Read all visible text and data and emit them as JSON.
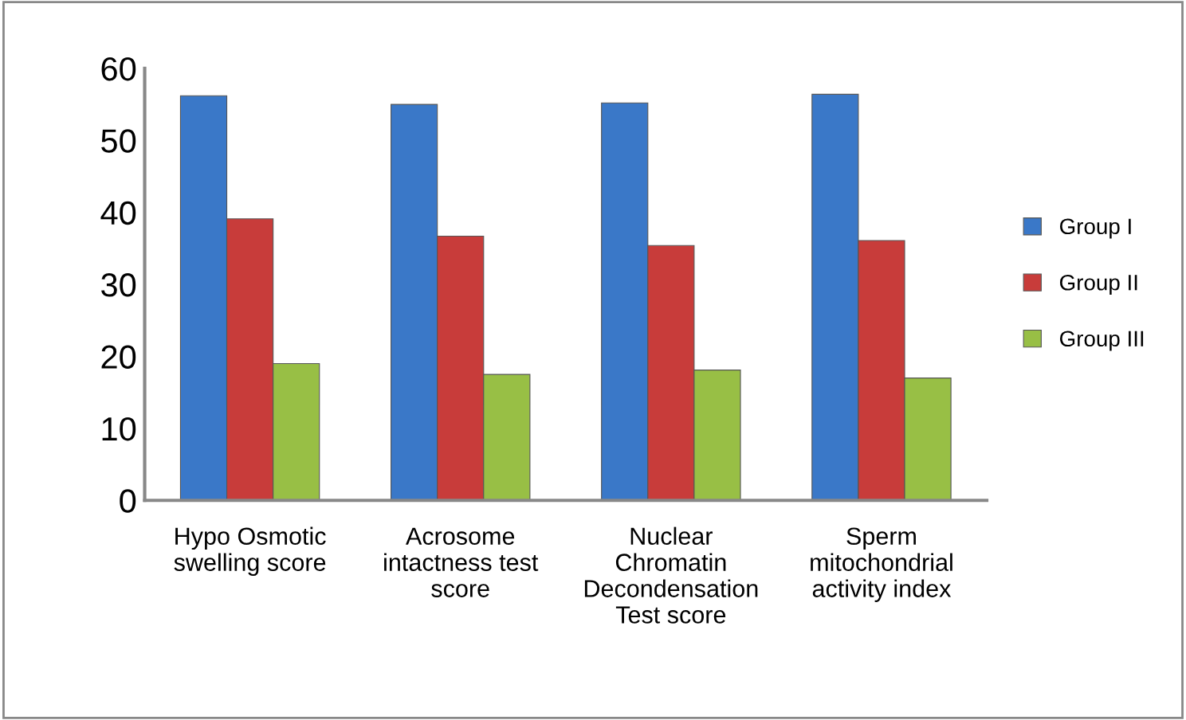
{
  "chart_data": {
    "type": "bar",
    "categories": [
      "Hypo Osmotic\nswelling score",
      "Acrosome\nintactness test\nscore",
      "Nuclear\nChromatin\nDecondensation\nTest score",
      "Sperm\nmitochondrial\nactivity index"
    ],
    "series": [
      {
        "name": "Group I",
        "color": "#3a78c8",
        "values": [
          56.2,
          55,
          55.2,
          56.4
        ]
      },
      {
        "name": "Group II",
        "color": "#c83c3a",
        "values": [
          39.1,
          36.7,
          35.4,
          36.1
        ]
      },
      {
        "name": "Group III",
        "color": "#98bf45",
        "values": [
          19,
          17.5,
          18.1,
          17
        ]
      }
    ],
    "ylim": [
      0,
      60
    ],
    "yticks": [
      0,
      10,
      20,
      30,
      40,
      50,
      60
    ],
    "grid": false,
    "legend": "right"
  }
}
